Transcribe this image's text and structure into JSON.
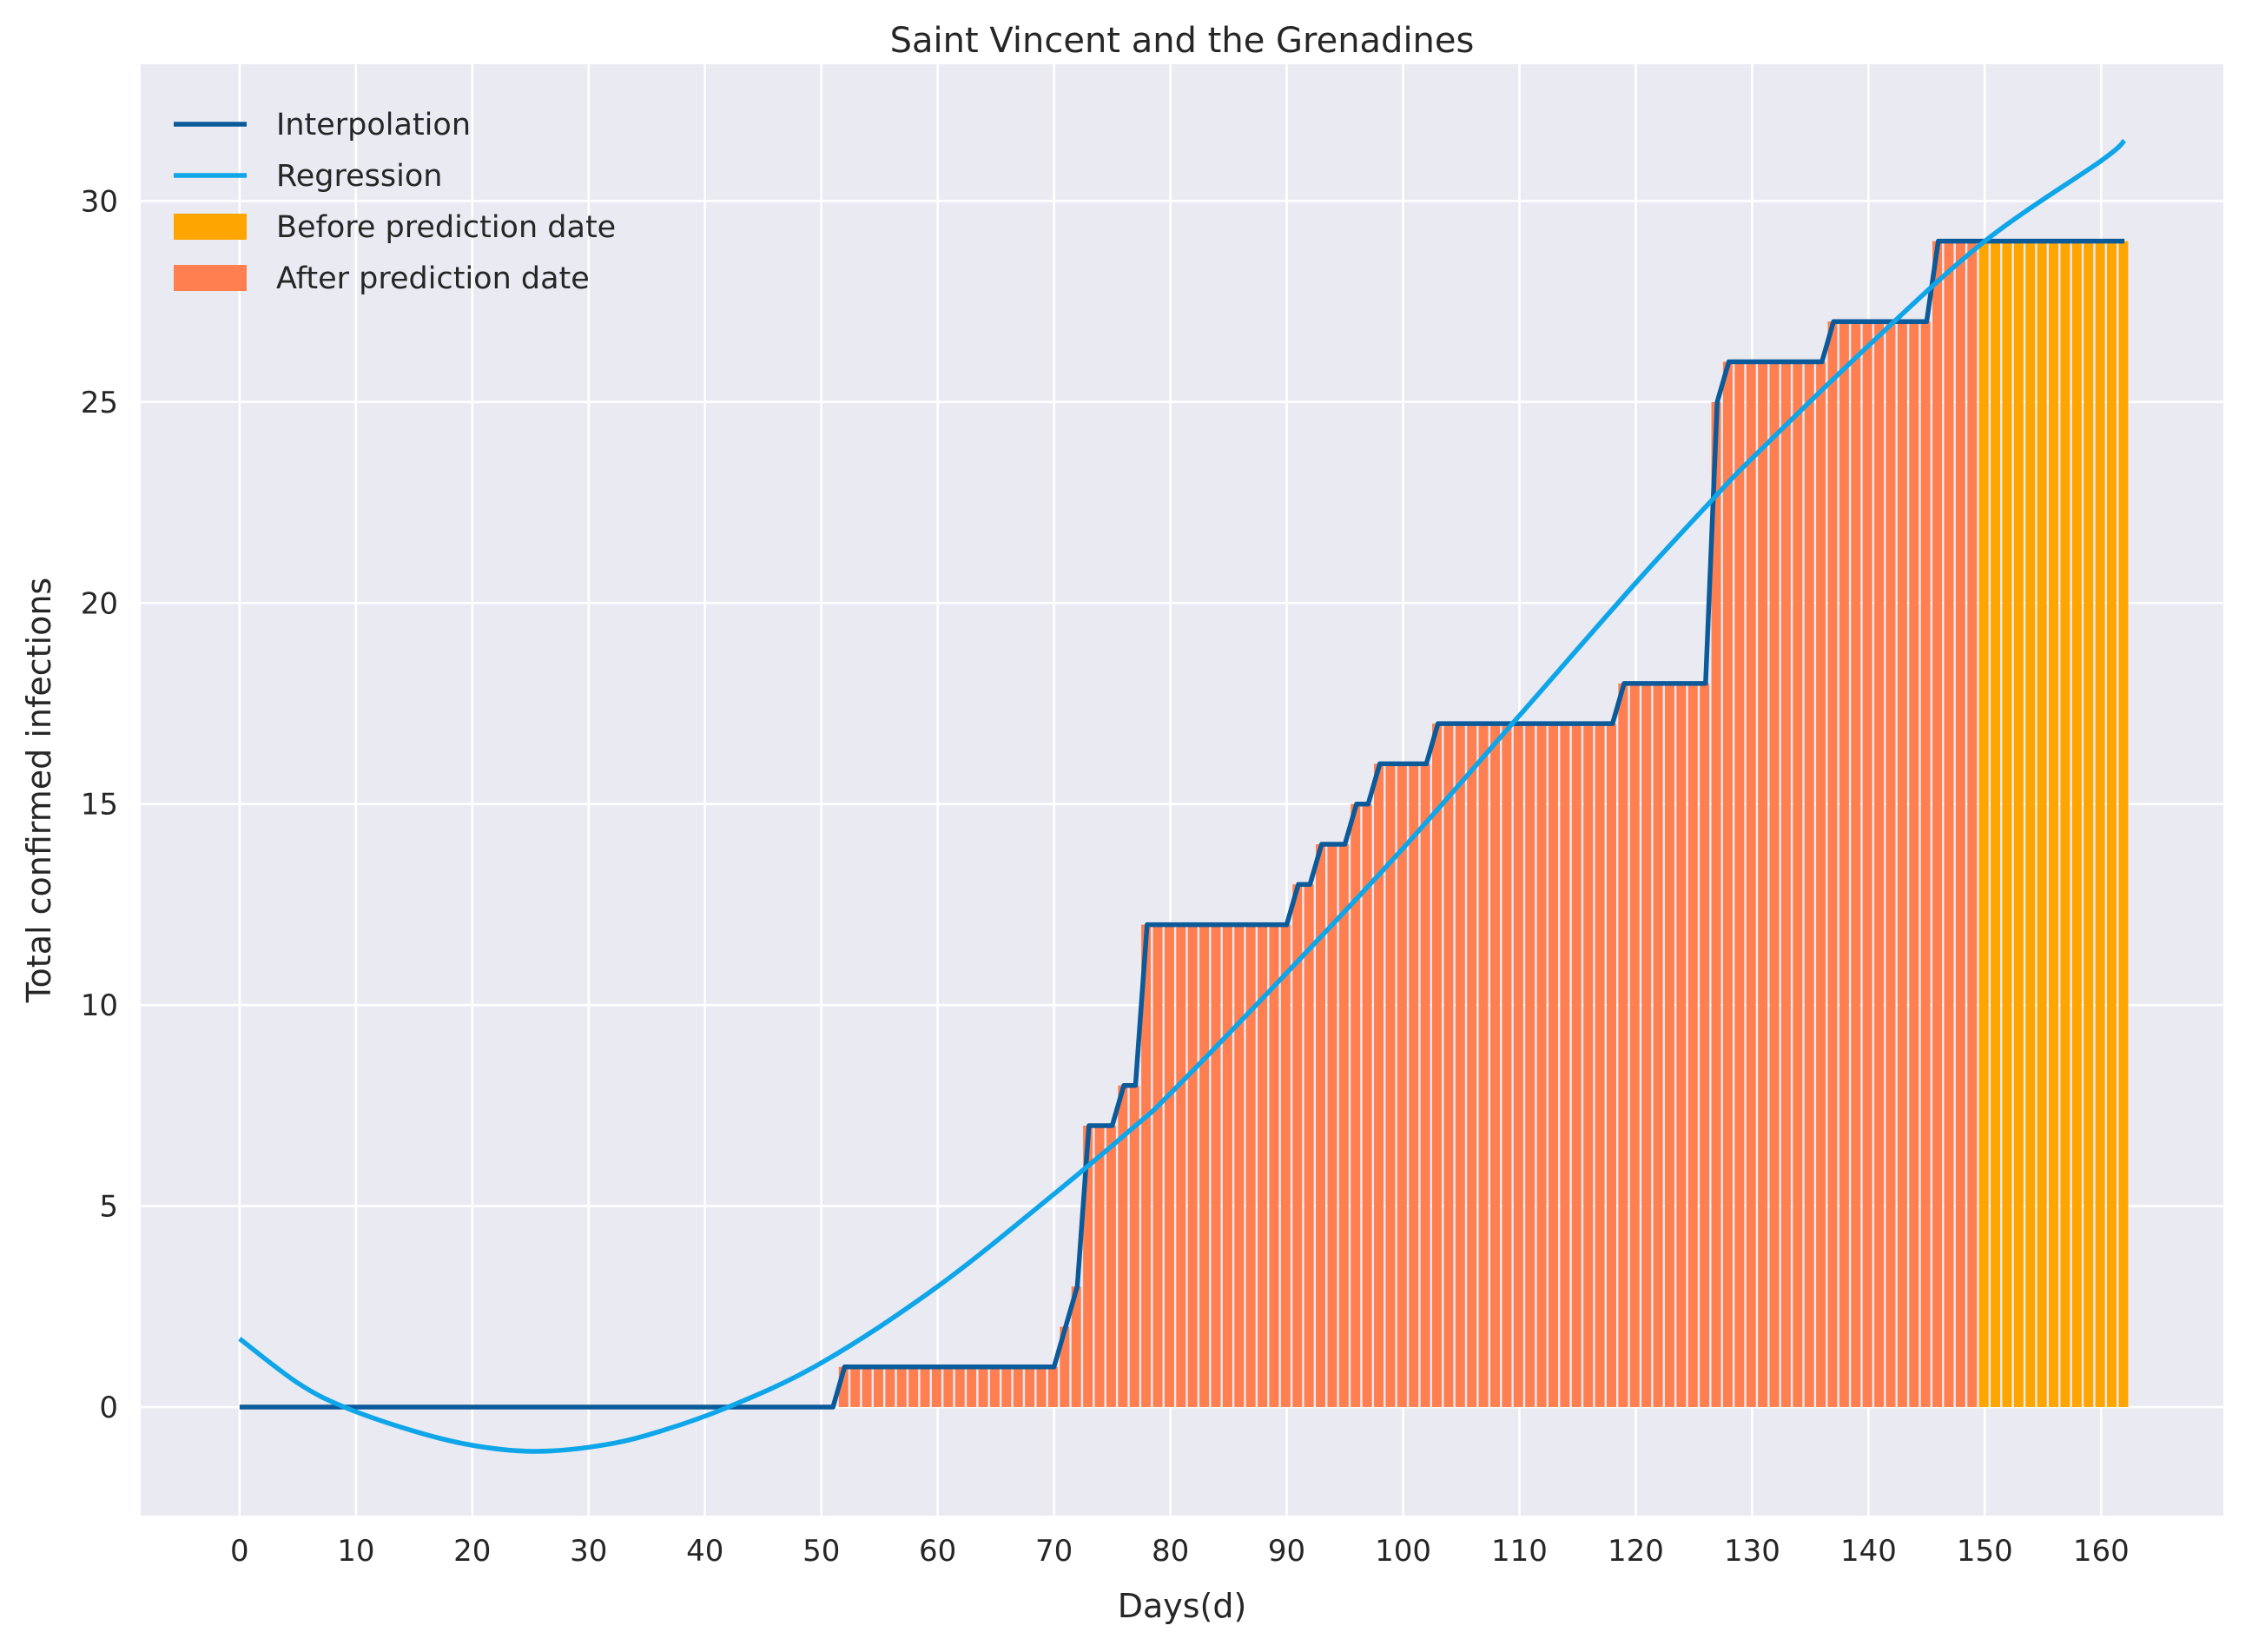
{
  "chart_data": {
    "type": "bar",
    "title": "Saint Vincent and the Grenadines",
    "xlabel": "Days(d)",
    "ylabel": "Total confirmed infections",
    "xlim": [
      -8.5,
      170.5
    ],
    "ylim": [
      -2.7,
      33.4
    ],
    "xticks": [
      0,
      10,
      20,
      30,
      40,
      50,
      60,
      70,
      80,
      90,
      100,
      110,
      120,
      130,
      140,
      150,
      160
    ],
    "yticks": [
      0,
      5,
      10,
      15,
      20,
      25,
      30
    ],
    "grid": true,
    "legend_position": "top-left",
    "prediction_day": 150,
    "colors": {
      "background": "#EAEAF2",
      "grid": "#FFFFFF",
      "interpolation": "#0B5A9A",
      "regression": "#0EA5E9",
      "before": "#FFA500",
      "after": "#FF7F50"
    },
    "legend": [
      {
        "label": "Interpolation",
        "kind": "line",
        "color": "#0B5A9A"
      },
      {
        "label": "Regression",
        "kind": "line",
        "color": "#0EA5E9"
      },
      {
        "label": "Before prediction date",
        "kind": "patch",
        "color": "#FFA500"
      },
      {
        "label": "After prediction date",
        "kind": "patch",
        "color": "#FF7F50"
      }
    ],
    "interpolation": {
      "name": "Interpolation",
      "x": [
        0,
        51,
        52,
        70,
        72,
        73,
        75,
        76,
        77,
        78,
        90,
        91,
        92,
        93,
        95,
        96,
        97,
        98,
        102,
        103,
        118,
        119,
        126,
        127,
        128,
        136,
        137,
        145,
        146,
        162
      ],
      "y": [
        0,
        0,
        1,
        1,
        3,
        7,
        7,
        8,
        8,
        12,
        12,
        13,
        13,
        14,
        14,
        15,
        15,
        16,
        16,
        17,
        17,
        18,
        18,
        25,
        26,
        26,
        27,
        27,
        29,
        29
      ]
    },
    "regression": {
      "name": "Regression",
      "x": [
        0,
        5,
        9,
        15,
        20,
        25,
        30,
        35,
        42,
        50,
        60,
        70,
        77,
        80,
        90,
        100,
        110,
        120,
        127,
        130,
        140,
        150,
        160,
        162
      ],
      "y": [
        1.7,
        0.6,
        0.0,
        -0.6,
        -0.95,
        -1.1,
        -1.0,
        -0.7,
        0.0,
        1.1,
        3.0,
        5.3,
        7.0,
        7.8,
        10.8,
        13.9,
        17.2,
        20.5,
        22.7,
        23.6,
        26.4,
        29.0,
        31.0,
        31.5
      ]
    }
  }
}
